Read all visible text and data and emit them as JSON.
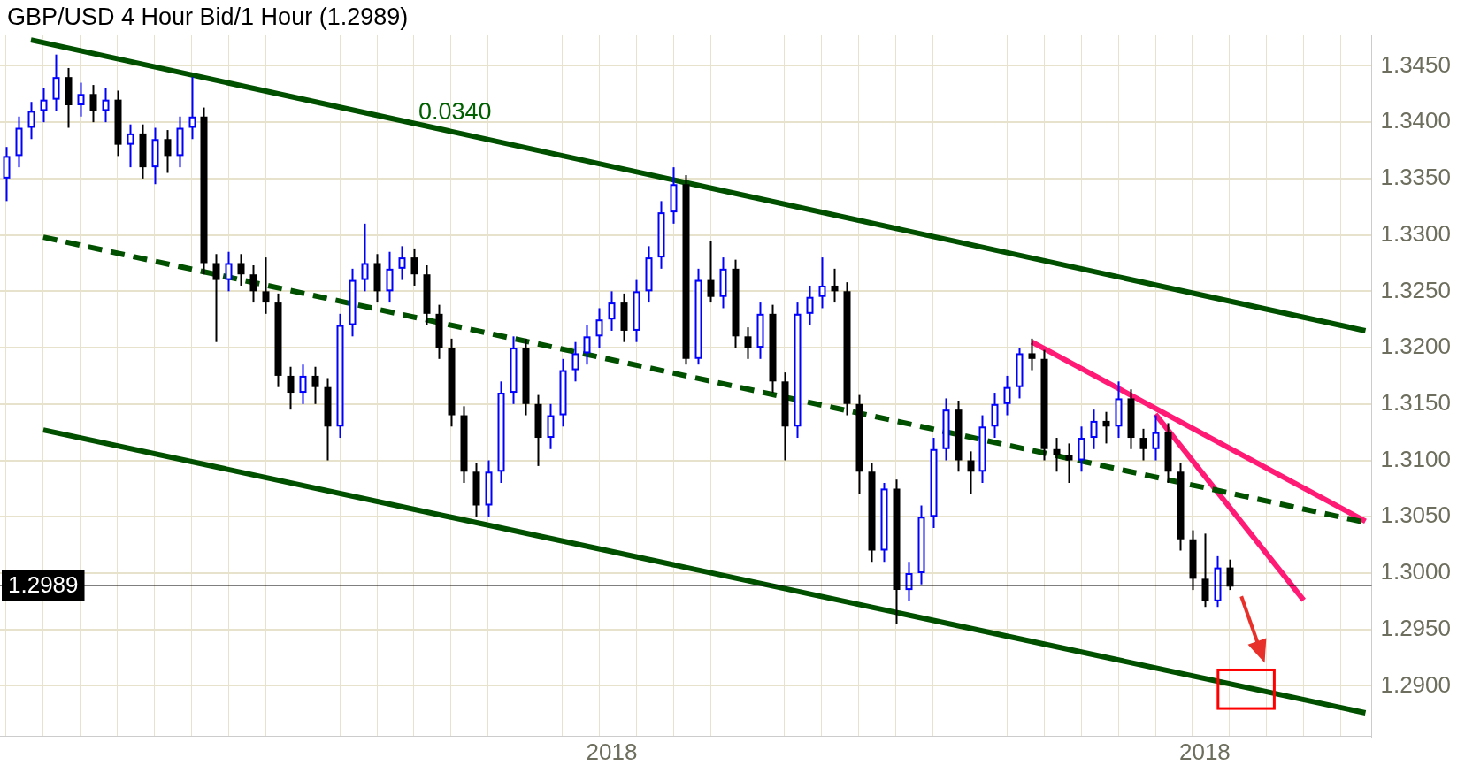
{
  "chart_data": {
    "type": "candlestick",
    "title": "GBP/USD 4 Hour Bid/1 Hour (1.2989)",
    "categories": [
      null,
      null,
      null,
      null,
      null,
      null,
      null,
      null,
      null,
      null,
      null,
      null,
      null,
      null,
      null,
      null,
      null,
      null,
      null,
      null,
      null,
      null,
      null,
      null,
      null,
      null,
      null,
      null,
      null,
      null,
      null,
      null,
      null,
      null,
      null,
      null,
      null,
      null,
      null,
      null,
      null,
      null,
      null,
      null,
      null,
      null,
      null,
      null,
      null,
      "2018",
      null,
      null,
      null,
      null,
      null,
      null,
      null,
      null,
      null,
      null,
      null,
      null,
      null,
      null,
      null,
      null,
      null,
      null,
      null,
      null,
      null,
      null,
      null,
      null,
      null,
      null,
      null,
      null,
      null,
      null,
      null,
      null,
      null,
      null,
      null,
      null,
      null,
      null,
      null,
      null,
      null,
      null,
      null,
      null,
      null,
      null,
      null,
      "2018",
      null,
      null,
      null,
      null,
      null,
      null,
      null,
      null,
      null,
      null,
      null,
      null,
      null
    ],
    "ohlc": [
      [
        1.335,
        1.3378,
        1.333,
        1.337
      ],
      [
        1.337,
        1.3405,
        1.336,
        1.3395
      ],
      [
        1.3395,
        1.3418,
        1.3385,
        1.341
      ],
      [
        1.341,
        1.343,
        1.34,
        1.342
      ],
      [
        1.342,
        1.346,
        1.341,
        1.344
      ],
      [
        1.344,
        1.3448,
        1.3395,
        1.3415
      ],
      [
        1.3415,
        1.3435,
        1.3405,
        1.3425
      ],
      [
        1.3425,
        1.3433,
        1.34,
        1.341
      ],
      [
        1.341,
        1.343,
        1.34,
        1.342
      ],
      [
        1.342,
        1.3428,
        1.337,
        1.338
      ],
      [
        1.338,
        1.3398,
        1.336,
        1.339
      ],
      [
        1.339,
        1.3398,
        1.335,
        1.336
      ],
      [
        1.336,
        1.3395,
        1.3345,
        1.3385
      ],
      [
        1.3385,
        1.3393,
        1.3355,
        1.337
      ],
      [
        1.337,
        1.3405,
        1.336,
        1.3395
      ],
      [
        1.3395,
        1.344,
        1.3385,
        1.3405
      ],
      [
        1.3405,
        1.3413,
        1.3265,
        1.3275
      ],
      [
        1.3275,
        1.3283,
        1.3205,
        1.326
      ],
      [
        1.326,
        1.3285,
        1.325,
        1.3275
      ],
      [
        1.3275,
        1.3283,
        1.3255,
        1.3265
      ],
      [
        1.3265,
        1.3273,
        1.324,
        1.325
      ],
      [
        1.325,
        1.328,
        1.323,
        1.324
      ],
      [
        1.324,
        1.3248,
        1.3165,
        1.3175
      ],
      [
        1.3175,
        1.3183,
        1.3145,
        1.316
      ],
      [
        1.316,
        1.3185,
        1.315,
        1.3175
      ],
      [
        1.3175,
        1.3183,
        1.315,
        1.3165
      ],
      [
        1.3165,
        1.3173,
        1.31,
        1.313
      ],
      [
        1.313,
        1.323,
        1.312,
        1.322
      ],
      [
        1.322,
        1.327,
        1.321,
        1.326
      ],
      [
        1.326,
        1.331,
        1.325,
        1.3275
      ],
      [
        1.3275,
        1.3283,
        1.324,
        1.325
      ],
      [
        1.325,
        1.3285,
        1.324,
        1.327
      ],
      [
        1.327,
        1.329,
        1.326,
        1.328
      ],
      [
        1.328,
        1.3288,
        1.3255,
        1.3265
      ],
      [
        1.3265,
        1.3273,
        1.322,
        1.323
      ],
      [
        1.323,
        1.3238,
        1.319,
        1.32
      ],
      [
        1.32,
        1.3208,
        1.313,
        1.314
      ],
      [
        1.314,
        1.3148,
        1.308,
        1.309
      ],
      [
        1.309,
        1.3098,
        1.305,
        1.306
      ],
      [
        1.306,
        1.31,
        1.305,
        1.309
      ],
      [
        1.309,
        1.317,
        1.308,
        1.316
      ],
      [
        1.316,
        1.321,
        1.315,
        1.32
      ],
      [
        1.32,
        1.3208,
        1.314,
        1.315
      ],
      [
        1.315,
        1.3158,
        1.3095,
        1.312
      ],
      [
        1.312,
        1.315,
        1.311,
        1.314
      ],
      [
        1.314,
        1.319,
        1.313,
        1.318
      ],
      [
        1.318,
        1.3205,
        1.317,
        1.3195
      ],
      [
        1.3195,
        1.322,
        1.3185,
        1.321
      ],
      [
        1.321,
        1.3235,
        1.32,
        1.3225
      ],
      [
        1.3225,
        1.325,
        1.3215,
        1.324
      ],
      [
        1.324,
        1.3248,
        1.3205,
        1.3215
      ],
      [
        1.3215,
        1.326,
        1.3205,
        1.325
      ],
      [
        1.325,
        1.329,
        1.324,
        1.328
      ],
      [
        1.328,
        1.333,
        1.327,
        1.332
      ],
      [
        1.332,
        1.336,
        1.331,
        1.3345
      ],
      [
        1.3345,
        1.3353,
        1.3185,
        1.319
      ],
      [
        1.319,
        1.327,
        1.3185,
        1.326
      ],
      [
        1.326,
        1.3295,
        1.324,
        1.3245
      ],
      [
        1.3245,
        1.328,
        1.3235,
        1.327
      ],
      [
        1.327,
        1.3278,
        1.32,
        1.321
      ],
      [
        1.321,
        1.3218,
        1.319,
        1.32
      ],
      [
        1.32,
        1.324,
        1.319,
        1.323
      ],
      [
        1.323,
        1.3238,
        1.316,
        1.317
      ],
      [
        1.317,
        1.3178,
        1.31,
        1.313
      ],
      [
        1.313,
        1.324,
        1.312,
        1.323
      ],
      [
        1.323,
        1.3255,
        1.322,
        1.3245
      ],
      [
        1.3245,
        1.328,
        1.3235,
        1.3255
      ],
      [
        1.3255,
        1.327,
        1.324,
        1.325
      ],
      [
        1.325,
        1.3258,
        1.314,
        1.315
      ],
      [
        1.315,
        1.3158,
        1.307,
        1.309
      ],
      [
        1.309,
        1.3098,
        1.301,
        1.302
      ],
      [
        1.302,
        1.308,
        1.301,
        1.3075
      ],
      [
        1.3075,
        1.3083,
        1.2955,
        1.2985
      ],
      [
        1.2985,
        1.301,
        1.2975,
        1.3
      ],
      [
        1.3,
        1.306,
        1.299,
        1.305
      ],
      [
        1.305,
        1.312,
        1.304,
        1.311
      ],
      [
        1.311,
        1.3155,
        1.31,
        1.3145
      ],
      [
        1.3145,
        1.3153,
        1.309,
        1.31
      ],
      [
        1.31,
        1.3108,
        1.307,
        1.309
      ],
      [
        1.309,
        1.314,
        1.308,
        1.313
      ],
      [
        1.313,
        1.316,
        1.312,
        1.315
      ],
      [
        1.315,
        1.3175,
        1.314,
        1.3165
      ],
      [
        1.3165,
        1.32,
        1.3155,
        1.3195
      ],
      [
        1.3195,
        1.3208,
        1.318,
        1.319
      ],
      [
        1.319,
        1.3198,
        1.31,
        1.311
      ],
      [
        1.311,
        1.312,
        1.309,
        1.3105
      ],
      [
        1.3105,
        1.3115,
        1.308,
        1.31
      ],
      [
        1.31,
        1.313,
        1.309,
        1.312
      ],
      [
        1.312,
        1.3145,
        1.311,
        1.3135
      ],
      [
        1.3135,
        1.3143,
        1.3115,
        1.313
      ],
      [
        1.313,
        1.317,
        1.312,
        1.3155
      ],
      [
        1.3155,
        1.3163,
        1.311,
        1.312
      ],
      [
        1.312,
        1.3128,
        1.31,
        1.311
      ],
      [
        1.311,
        1.314,
        1.31,
        1.3125
      ],
      [
        1.3125,
        1.3133,
        1.308,
        1.309
      ],
      [
        1.309,
        1.3098,
        1.302,
        1.303
      ],
      [
        1.303,
        1.3038,
        1.2985,
        1.2995
      ],
      [
        1.2995,
        1.3035,
        1.297,
        1.2975
      ],
      [
        1.2975,
        1.3015,
        1.297,
        1.3005
      ],
      [
        1.3005,
        1.3012,
        1.2985,
        1.2988
      ],
      null,
      null,
      null,
      null,
      null,
      null,
      null,
      null,
      null,
      null,
      null
    ],
    "colors": [
      "#0000ff",
      "#0000ff",
      "#0000ff",
      "#0000ff",
      "#0000ff",
      "#000000",
      "#0000ff",
      "#000000",
      "#0000ff",
      "#000000",
      "#0000ff",
      "#000000",
      "#0000ff",
      "#000000",
      "#0000ff",
      "#0000ff",
      "#000000",
      "#000000",
      "#0000ff",
      "#000000",
      "#000000",
      "#000000",
      "#000000",
      "#000000",
      "#0000ff",
      "#000000",
      "#000000",
      "#0000ff",
      "#0000ff",
      "#0000ff",
      "#000000",
      "#0000ff",
      "#0000ff",
      "#000000",
      "#000000",
      "#000000",
      "#000000",
      "#000000",
      "#000000",
      "#0000ff",
      "#0000ff",
      "#0000ff",
      "#000000",
      "#000000",
      "#0000ff",
      "#0000ff",
      "#0000ff",
      "#0000ff",
      "#0000ff",
      "#0000ff",
      "#000000",
      "#0000ff",
      "#0000ff",
      "#0000ff",
      "#0000ff",
      "#000000",
      "#0000ff",
      "#000000",
      "#0000ff",
      "#000000",
      "#000000",
      "#0000ff",
      "#000000",
      "#000000",
      "#0000ff",
      "#0000ff",
      "#0000ff",
      "#000000",
      "#000000",
      "#000000",
      "#000000",
      "#0000ff",
      "#000000",
      "#0000ff",
      "#0000ff",
      "#0000ff",
      "#0000ff",
      "#000000",
      "#000000",
      "#0000ff",
      "#0000ff",
      "#0000ff",
      "#0000ff",
      "#000000",
      "#000000",
      "#000000",
      "#000000",
      "#0000ff",
      "#0000ff",
      "#000000",
      "#0000ff",
      "#000000",
      "#000000",
      "#0000ff",
      "#000000",
      "#000000",
      "#000000",
      "#000000",
      "#0000ff",
      "#000000",
      null,
      null,
      null,
      null,
      null,
      null,
      null,
      null,
      null,
      null,
      null
    ],
    "series": [
      {
        "type": "line",
        "color": "#005000",
        "line_style": "solid",
        "values": [
          null,
          null,
          1.3473,
          null,
          null,
          null,
          null,
          null,
          null,
          null,
          null,
          null,
          null,
          null,
          null,
          null,
          null,
          null,
          null,
          null,
          null,
          null,
          null,
          null,
          null,
          null,
          null,
          null,
          null,
          null,
          null,
          null,
          null,
          null,
          null,
          null,
          null,
          null,
          null,
          null,
          null,
          null,
          null,
          null,
          null,
          null,
          null,
          null,
          null,
          null,
          null,
          null,
          null,
          null,
          null,
          null,
          null,
          null,
          null,
          null,
          null,
          null,
          null,
          null,
          null,
          null,
          null,
          null,
          null,
          null,
          null,
          null,
          null,
          null,
          null,
          null,
          null,
          null,
          null,
          null,
          null,
          null,
          null,
          null,
          null,
          null,
          null,
          null,
          null,
          null,
          null,
          null,
          null,
          null,
          null,
          null,
          null,
          null,
          null,
          null,
          null,
          null,
          null,
          null,
          null,
          null,
          null,
          null,
          null,
          null,
          1.3215
        ]
      },
      {
        "type": "line",
        "color": "#005000",
        "line_style": "dashed",
        "values": [
          null,
          null,
          null,
          1.3298,
          null,
          null,
          null,
          null,
          null,
          null,
          null,
          null,
          null,
          null,
          null,
          null,
          null,
          null,
          null,
          null,
          null,
          null,
          null,
          null,
          null,
          null,
          null,
          null,
          null,
          null,
          null,
          null,
          null,
          null,
          null,
          null,
          null,
          null,
          null,
          null,
          null,
          null,
          null,
          null,
          null,
          null,
          null,
          null,
          null,
          null,
          null,
          null,
          null,
          null,
          null,
          null,
          null,
          null,
          null,
          null,
          null,
          null,
          null,
          null,
          null,
          null,
          null,
          null,
          null,
          null,
          null,
          null,
          null,
          null,
          null,
          null,
          null,
          null,
          null,
          null,
          null,
          null,
          null,
          null,
          null,
          null,
          null,
          null,
          null,
          null,
          null,
          null,
          null,
          null,
          null,
          null,
          null,
          null,
          null,
          null,
          null,
          null,
          null,
          null,
          null,
          null,
          null,
          null,
          null,
          null,
          1.3045
        ]
      },
      {
        "type": "line",
        "color": "#005000",
        "line_style": "solid",
        "values": [
          null,
          null,
          null,
          1.3127,
          null,
          null,
          null,
          null,
          null,
          null,
          null,
          null,
          null,
          null,
          null,
          null,
          null,
          null,
          null,
          null,
          null,
          null,
          null,
          null,
          null,
          null,
          null,
          null,
          null,
          null,
          null,
          null,
          null,
          null,
          null,
          null,
          null,
          null,
          null,
          null,
          null,
          null,
          null,
          null,
          null,
          null,
          null,
          null,
          null,
          null,
          null,
          null,
          null,
          null,
          null,
          null,
          null,
          null,
          null,
          null,
          null,
          null,
          null,
          null,
          null,
          null,
          null,
          null,
          null,
          null,
          null,
          null,
          null,
          null,
          null,
          null,
          null,
          null,
          null,
          null,
          null,
          null,
          null,
          null,
          null,
          null,
          null,
          null,
          null,
          null,
          null,
          null,
          null,
          null,
          null,
          null,
          null,
          null,
          null,
          null,
          null,
          null,
          null,
          null,
          null,
          null,
          null,
          null,
          null,
          null,
          1.2876
        ]
      },
      {
        "type": "line",
        "color": "#ff1a75",
        "line_style": "solid",
        "values": [
          null,
          null,
          null,
          null,
          null,
          null,
          null,
          null,
          null,
          null,
          null,
          null,
          null,
          null,
          null,
          null,
          null,
          null,
          null,
          null,
          null,
          null,
          null,
          null,
          null,
          null,
          null,
          null,
          null,
          null,
          null,
          null,
          null,
          null,
          null,
          null,
          null,
          null,
          null,
          null,
          null,
          null,
          null,
          null,
          null,
          null,
          null,
          null,
          null,
          null,
          null,
          null,
          null,
          null,
          null,
          null,
          null,
          null,
          null,
          null,
          null,
          null,
          null,
          null,
          null,
          null,
          null,
          null,
          null,
          null,
          null,
          null,
          null,
          null,
          null,
          null,
          null,
          null,
          null,
          null,
          null,
          null,
          null,
          1.3205,
          null,
          null,
          null,
          null,
          null,
          null,
          null,
          null,
          null,
          null,
          null,
          null,
          null,
          null,
          null,
          null,
          null,
          null,
          null,
          null,
          null,
          null,
          null,
          null,
          null,
          null,
          1.3046
        ]
      },
      {
        "type": "line",
        "color": "#ff1a75",
        "line_style": "solid",
        "values": [
          null,
          null,
          null,
          null,
          null,
          null,
          null,
          null,
          null,
          null,
          null,
          null,
          null,
          null,
          null,
          null,
          null,
          null,
          null,
          null,
          null,
          null,
          null,
          null,
          null,
          null,
          null,
          null,
          null,
          null,
          null,
          null,
          null,
          null,
          null,
          null,
          null,
          null,
          null,
          null,
          null,
          null,
          null,
          null,
          null,
          null,
          null,
          null,
          null,
          null,
          null,
          null,
          null,
          null,
          null,
          null,
          null,
          null,
          null,
          null,
          null,
          null,
          null,
          null,
          null,
          null,
          null,
          null,
          null,
          null,
          null,
          null,
          null,
          null,
          null,
          null,
          null,
          null,
          null,
          null,
          null,
          null,
          null,
          null,
          null,
          null,
          null,
          null,
          null,
          null,
          null,
          null,
          null,
          1.3141,
          null,
          null,
          null,
          null,
          null,
          null,
          null,
          null,
          null,
          null,
          null,
          1.2976,
          null,
          null,
          null,
          null,
          null
        ]
      }
    ],
    "ylim": [
      1.2855,
      1.3477
    ],
    "yticks": [
      {
        "value": 1.29,
        "label": "1.2900"
      },
      {
        "value": 1.295,
        "label": "1.2950"
      },
      {
        "value": 1.3,
        "label": "1.3000"
      },
      {
        "value": 1.305,
        "label": "1.3050"
      },
      {
        "value": 1.31,
        "label": "1.3100"
      },
      {
        "value": 1.315,
        "label": "1.3150"
      },
      {
        "value": 1.32,
        "label": "1.3200"
      },
      {
        "value": 1.325,
        "label": "1.3250"
      },
      {
        "value": 1.33,
        "label": "1.3300"
      },
      {
        "value": 1.335,
        "label": "1.3350"
      },
      {
        "value": 1.34,
        "label": "1.3400"
      },
      {
        "value": 1.345,
        "label": "1.3450"
      }
    ],
    "ref_lines": [
      {
        "axis": "y",
        "value": 1.2989,
        "label": "1.2989",
        "color": "#000000"
      }
    ],
    "annotations": [
      "0.0340"
    ],
    "grid": true,
    "legend": false,
    "marker": "none"
  }
}
